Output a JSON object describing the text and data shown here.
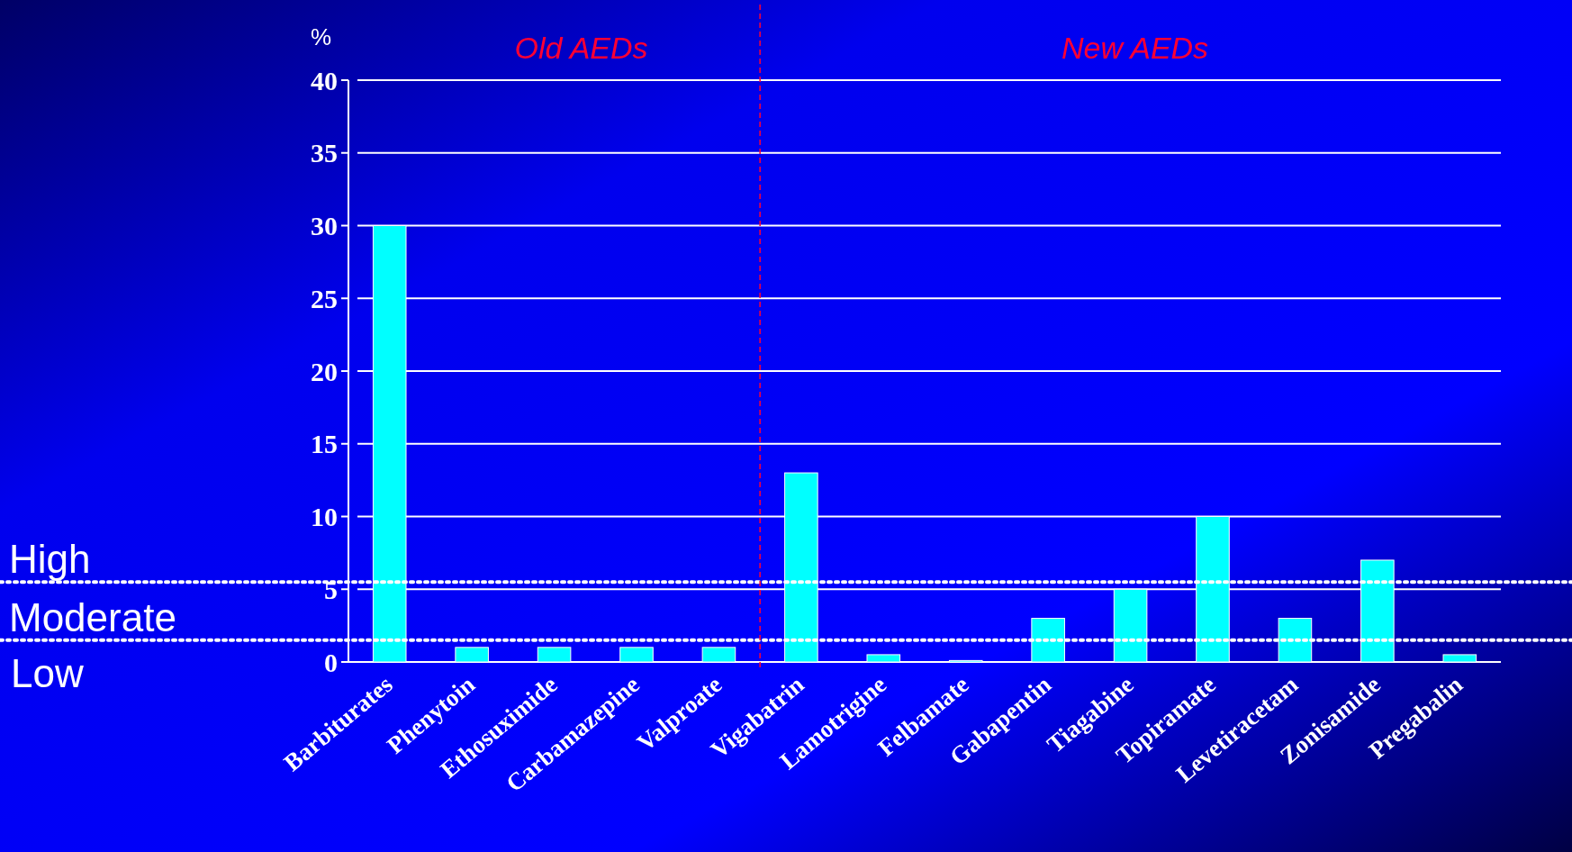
{
  "chart_data": {
    "type": "bar",
    "ylabel": "%",
    "categories": [
      "Barbiturates",
      "Phenytoin",
      "Ethosuximide",
      "Carbamazepine",
      "Valproate",
      "Vigabatrin",
      "Lamotrigine",
      "Felbamate",
      "Gabapentin",
      "Tiagabine",
      "Topiramate",
      "Levetiracetam",
      "Zonisamide",
      "Pregabalin"
    ],
    "values": [
      30,
      1,
      1,
      1,
      1,
      13,
      0.5,
      0.1,
      3,
      5,
      10,
      3,
      7,
      0.5
    ],
    "color": "#00ffff",
    "ylim": [
      0,
      40
    ],
    "yticks": [
      0,
      5,
      10,
      15,
      20,
      25,
      30,
      35,
      40
    ],
    "grid": "y",
    "ref_lines": [
      {
        "axis": "y",
        "value": 5.5,
        "label": "High",
        "color": "#ffffff",
        "line_style": "dotted"
      },
      {
        "axis": "y",
        "value": 1.5,
        "label": "Moderate",
        "color": "#ffffff",
        "line_style": "dotted"
      }
    ],
    "annotations": [
      "Low",
      "Old AEDs",
      "New AEDs"
    ]
  }
}
